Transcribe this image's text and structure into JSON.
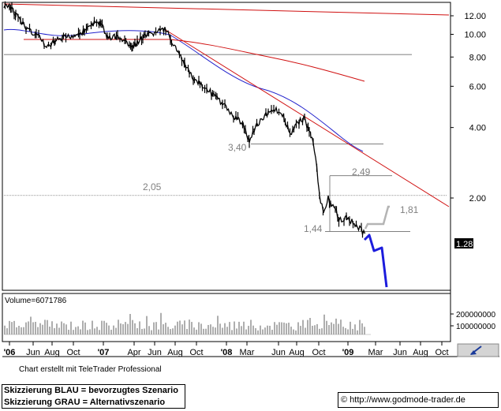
{
  "chart_data": {
    "type": "line",
    "scale": "log",
    "price_axis": {
      "ticks": [
        "12.00",
        "10.00",
        "8.00",
        "6.00",
        "4.00",
        "2.00"
      ],
      "last_price_label": "1.28"
    },
    "volume_axis": {
      "label": "Volume=6071786",
      "ticks": [
        "200000000",
        "100000000"
      ]
    },
    "x_ticks": [
      "'06",
      "Jun",
      "Aug",
      "Oct",
      "'07",
      "Apr",
      "Jun",
      "Aug",
      "Oct",
      "'08",
      "Mar",
      "Jun",
      "Aug",
      "Oct",
      "'09",
      "Mar",
      "Jun",
      "Aug",
      "Oct"
    ],
    "annotations": [
      "3,40",
      "2,05",
      "2,49",
      "1,81",
      "1,44"
    ],
    "series": [
      {
        "name": "Price",
        "color": "#000000"
      },
      {
        "name": "",
        "color": "#2222cc"
      },
      {
        "name": "",
        "color": "#d01010"
      }
    ],
    "horizontal_levels": [
      8.2,
      3.4,
      2.05,
      2.49,
      1.44
    ],
    "scenario_lines": [
      {
        "color": "#1c1cdd"
      },
      {
        "color": "#b4b4b4"
      }
    ]
  },
  "footer": {
    "credit": "Chart erstellt mit TeleTrader Professional",
    "legend_blue": "Skizzierung BLAU = bevorzugtes Szenario",
    "legend_grey": "Skizzierung GRAU = Alternativszenario",
    "url": "© http://www.godmode-trader.de"
  }
}
